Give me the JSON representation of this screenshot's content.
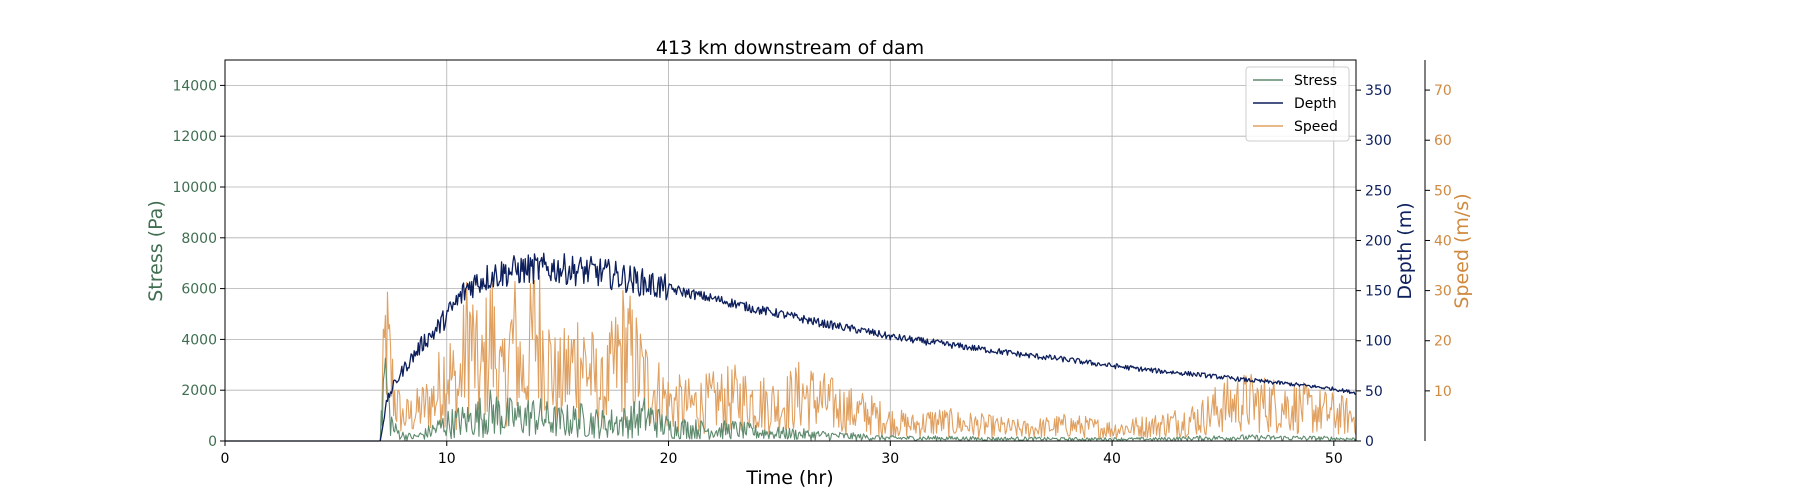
{
  "chart_data": {
    "type": "line",
    "title": "413 km downstream of dam",
    "xlabel": "Time (hr)",
    "xlim": [
      0,
      51
    ],
    "xticks": [
      0,
      10,
      20,
      30,
      40,
      50
    ],
    "grid": true,
    "legend_position": "top-right",
    "colors": {
      "stress": "#5e8a6e",
      "depth": "#0d1f5c",
      "speed": "#e0a060",
      "stress_axis": "#3f6e50",
      "depth_axis": "#0d1f5c",
      "speed_axis": "#d08a40",
      "grid": "#b0b0b0"
    },
    "axes": {
      "stress": {
        "label": "Stress (Pa)",
        "range": [
          0,
          15000
        ],
        "ticks": [
          0,
          2000,
          4000,
          6000,
          8000,
          10000,
          12000,
          14000
        ]
      },
      "depth": {
        "label": "Depth (m)",
        "range": [
          0,
          380
        ],
        "ticks": [
          0,
          50,
          100,
          150,
          200,
          250,
          300,
          350
        ]
      },
      "speed": {
        "label": "Speed (m/s)",
        "range": [
          0,
          76
        ],
        "ticks": [
          10,
          20,
          30,
          40,
          50,
          60,
          70
        ]
      }
    },
    "series": [
      {
        "name": "Stress",
        "axis": "stress",
        "x": [
          0,
          7,
          7.2,
          7.4,
          7.6,
          8,
          8.5,
          9,
          10,
          11,
          12,
          13,
          14,
          15,
          16,
          17,
          18,
          19,
          20,
          21,
          22,
          23,
          24,
          25,
          26,
          27,
          28,
          29,
          30,
          32,
          34,
          36,
          38,
          40,
          42,
          44,
          46,
          48,
          50,
          51
        ],
        "values": [
          0,
          0,
          3700,
          1500,
          600,
          300,
          200,
          350,
          900,
          1100,
          1500,
          1200,
          1300,
          1000,
          1100,
          900,
          1000,
          1300,
          700,
          650,
          550,
          600,
          450,
          400,
          350,
          300,
          250,
          200,
          150,
          150,
          120,
          120,
          100,
          100,
          100,
          150,
          180,
          160,
          130,
          100
        ]
      },
      {
        "name": "Depth",
        "axis": "depth",
        "x": [
          0,
          7,
          7.3,
          7.6,
          8,
          8.5,
          9,
          9.5,
          10,
          10.5,
          11,
          11.5,
          12,
          13,
          14,
          15,
          16,
          17,
          18,
          19,
          20,
          21,
          22,
          23,
          24,
          25,
          26,
          27,
          28,
          29,
          30,
          32,
          34,
          36,
          38,
          40,
          42,
          44,
          46,
          48,
          50,
          51
        ],
        "values": [
          0,
          0,
          40,
          55,
          70,
          85,
          100,
          110,
          125,
          140,
          155,
          160,
          165,
          170,
          172,
          172,
          170,
          168,
          163,
          157,
          152,
          147,
          142,
          137,
          131,
          127,
          122,
          117,
          113,
          109,
          104,
          98,
          92,
          86,
          81,
          75,
          70,
          66,
          61,
          57,
          52,
          48
        ]
      },
      {
        "name": "Speed",
        "axis": "speed",
        "x": [
          0,
          7,
          7.1,
          7.25,
          7.5,
          7.7,
          8,
          8.5,
          9,
          9.5,
          10,
          10.5,
          11,
          11.5,
          12,
          12.5,
          13,
          13.5,
          14,
          15,
          16,
          17,
          18,
          19,
          20,
          21,
          22,
          23,
          24,
          25,
          26,
          27,
          28,
          29,
          30,
          31,
          32,
          34,
          36,
          38,
          40,
          42,
          44,
          45,
          46,
          48,
          50,
          51
        ],
        "values": [
          0,
          0,
          12,
          27,
          16,
          10,
          6,
          7,
          9,
          11,
          19,
          12,
          28,
          15,
          27,
          14,
          26,
          16,
          29,
          14,
          22,
          12,
          24,
          15,
          10,
          9,
          10,
          11,
          10,
          9,
          12,
          10,
          8,
          7,
          5,
          4,
          5,
          4,
          3,
          4,
          3,
          4,
          6,
          9,
          10,
          9,
          7,
          6
        ]
      }
    ]
  }
}
